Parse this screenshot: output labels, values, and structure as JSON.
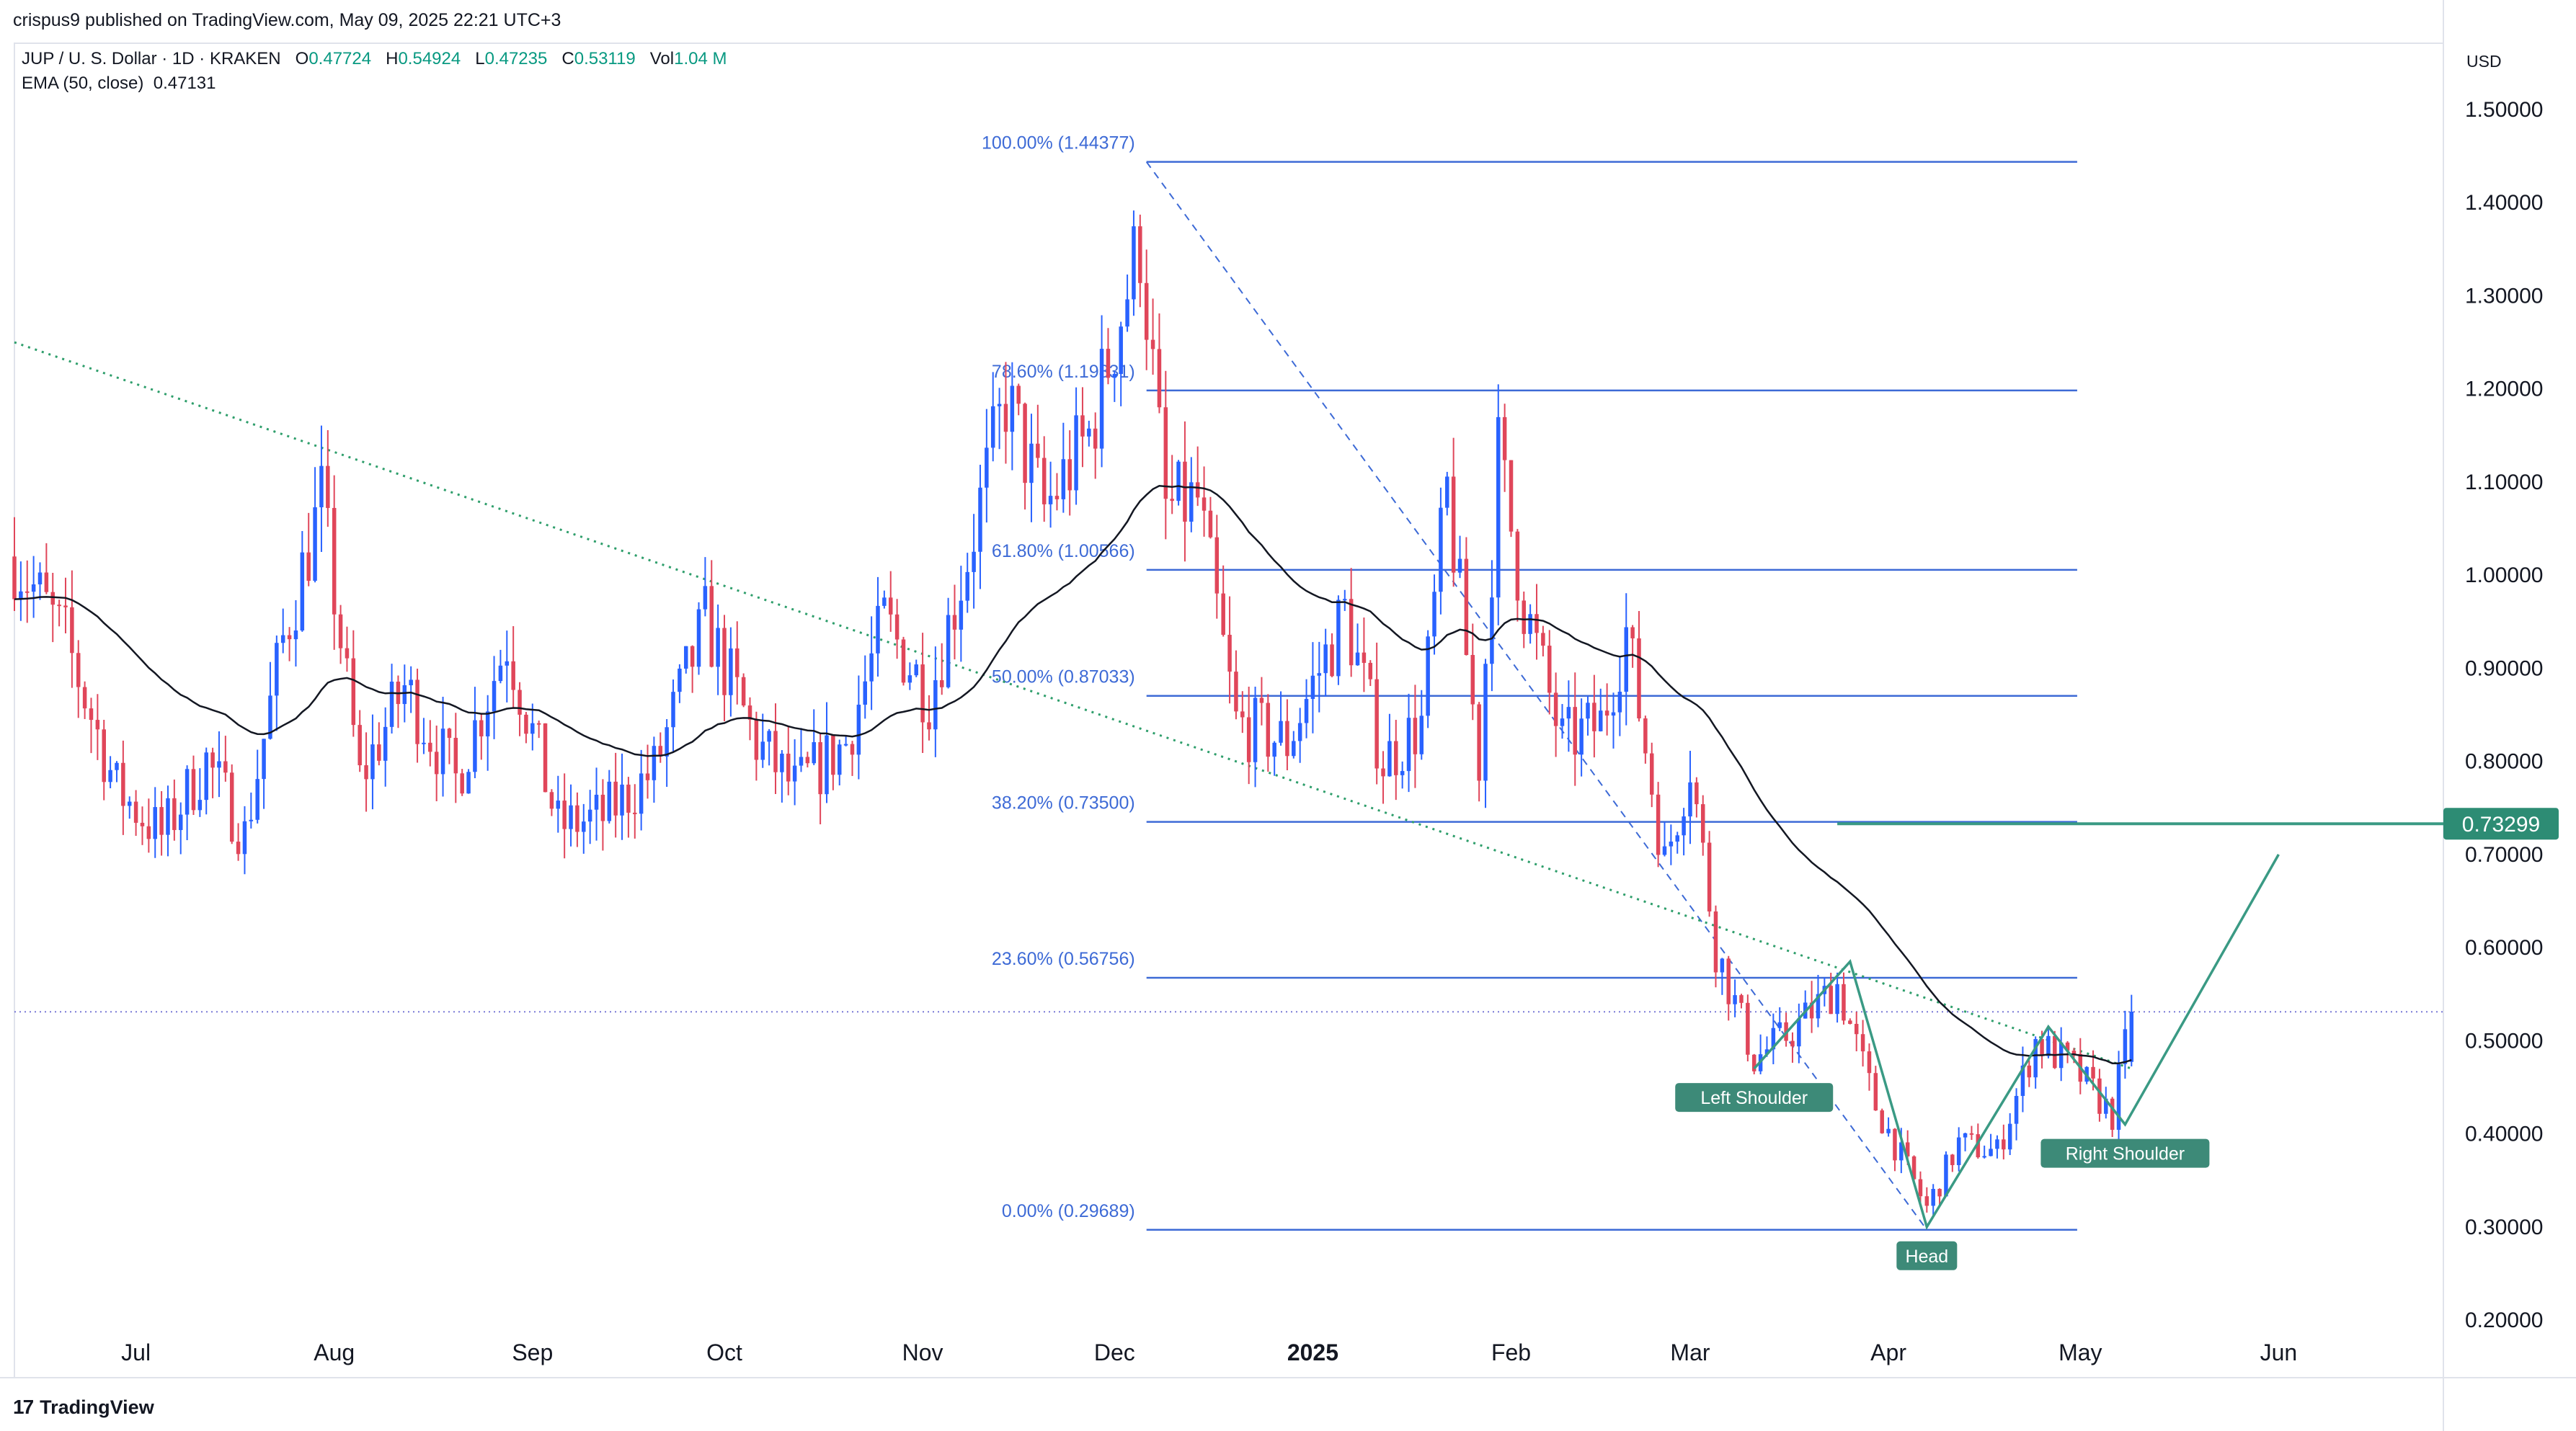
{
  "header": {
    "published": "crispus9 published on TradingView.com, May 09, 2025 22:21 UTC+3",
    "symbol": "JUP / U. S. Dollar · 1D · KRAKEN",
    "o_label": "O",
    "o_value": "0.47724",
    "h_label": "H",
    "h_value": "0.54924",
    "l_label": "L",
    "l_value": "0.47235",
    "c_label": "C",
    "c_value": "0.53119",
    "vol_label": "Vol",
    "vol_value": "1.04 M",
    "ema_label": "EMA (50, close)",
    "ema_value": "0.47131",
    "currency": "USD"
  },
  "footer": {
    "brand": "TradingView",
    "logo_icon": "tradingview-logo-icon"
  },
  "colors": {
    "up": "#2962ff",
    "down": "#e0465a",
    "ema": "#131722",
    "fib": "#3d6ad6",
    "trend": "#2e9e6b",
    "pattern": "#3a9a84",
    "price_line": "#7a7ad6",
    "label_bg": "#3d8a78"
  },
  "chart_data": {
    "type": "candlestick",
    "y_axis": {
      "min": 0.2,
      "max": 1.5,
      "side": "right",
      "ticks": [
        "1.50000",
        "1.40000",
        "1.30000",
        "1.20000",
        "1.10000",
        "1.00000",
        "0.90000",
        "0.80000",
        "0.70000",
        "0.60000",
        "0.50000",
        "0.40000",
        "0.30000",
        "0.20000"
      ]
    },
    "x_axis": {
      "ticks": [
        {
          "label": "Jul",
          "date": "2024-07-01"
        },
        {
          "label": "Aug",
          "date": "2024-08-01"
        },
        {
          "label": "Sep",
          "date": "2024-09-01"
        },
        {
          "label": "Oct",
          "date": "2024-10-01"
        },
        {
          "label": "Nov",
          "date": "2024-11-01"
        },
        {
          "label": "Dec",
          "date": "2024-12-01"
        },
        {
          "label": "2025",
          "date": "2025-01-01",
          "bold": true
        },
        {
          "label": "Feb",
          "date": "2025-02-01"
        },
        {
          "label": "Mar",
          "date": "2025-03-01"
        },
        {
          "label": "Apr",
          "date": "2025-04-01"
        },
        {
          "label": "May",
          "date": "2025-05-01"
        },
        {
          "label": "Jun",
          "date": "2025-06-01"
        }
      ]
    },
    "price_path": {
      "start": "2024-06-12",
      "end": "2025-05-09",
      "closes": [
        [
          "2024-06-12",
          1.02
        ],
        [
          "2024-06-20",
          0.93
        ],
        [
          "2024-06-28",
          0.77
        ],
        [
          "2024-07-05",
          0.72
        ],
        [
          "2024-07-12",
          0.8
        ],
        [
          "2024-07-18",
          0.72
        ],
        [
          "2024-07-24",
          0.93
        ],
        [
          "2024-07-30",
          1.08
        ],
        [
          "2024-08-05",
          0.78
        ],
        [
          "2024-08-12",
          0.88
        ],
        [
          "2024-08-20",
          0.78
        ],
        [
          "2024-08-28",
          0.93
        ],
        [
          "2024-09-05",
          0.73
        ],
        [
          "2024-09-12",
          0.74
        ],
        [
          "2024-09-20",
          0.79
        ],
        [
          "2024-09-28",
          0.95
        ],
        [
          "2024-10-06",
          0.82
        ],
        [
          "2024-10-12",
          0.77
        ],
        [
          "2024-10-20",
          0.82
        ],
        [
          "2024-10-26",
          0.95
        ],
        [
          "2024-11-02",
          0.87
        ],
        [
          "2024-11-08",
          1.02
        ],
        [
          "2024-11-14",
          1.19
        ],
        [
          "2024-11-20",
          1.07
        ],
        [
          "2024-11-27",
          1.15
        ],
        [
          "2024-12-05",
          1.36
        ],
        [
          "2024-12-09",
          1.07
        ],
        [
          "2024-12-14",
          1.08
        ],
        [
          "2024-12-20",
          0.84
        ],
        [
          "2024-12-28",
          0.82
        ],
        [
          "2025-01-06",
          0.96
        ],
        [
          "2025-01-12",
          0.8
        ],
        [
          "2025-01-18",
          0.84
        ],
        [
          "2025-01-22",
          1.09
        ],
        [
          "2025-01-27",
          0.8
        ],
        [
          "2025-01-30",
          1.13
        ],
        [
          "2025-02-03",
          0.97
        ],
        [
          "2025-02-09",
          0.82
        ],
        [
          "2025-02-15",
          0.84
        ],
        [
          "2025-02-19",
          0.94
        ],
        [
          "2025-02-25",
          0.69
        ],
        [
          "2025-03-01",
          0.8
        ],
        [
          "2025-03-05",
          0.6
        ],
        [
          "2025-03-11",
          0.48
        ],
        [
          "2025-03-17",
          0.51
        ],
        [
          "2025-03-24",
          0.56
        ],
        [
          "2025-03-30",
          0.43
        ],
        [
          "2025-04-07",
          0.32
        ],
        [
          "2025-04-12",
          0.39
        ],
        [
          "2025-04-18",
          0.38
        ],
        [
          "2025-04-24",
          0.5
        ],
        [
          "2025-04-30",
          0.47
        ],
        [
          "2025-05-06",
          0.42
        ],
        [
          "2025-05-09",
          0.531
        ]
      ]
    },
    "ema_label": "EMA (50, close)",
    "fib_levels": [
      {
        "label": "100.00% (1.44377)",
        "value": 1.44377
      },
      {
        "label": "78.60% (1.19831)",
        "value": 1.19831
      },
      {
        "label": "61.80% (1.00566)",
        "value": 1.00566
      },
      {
        "label": "50.00% (0.87033)",
        "value": 0.87033
      },
      {
        "label": "38.20% (0.73500)",
        "value": 0.735
      },
      {
        "label": "23.60% (0.56756)",
        "value": 0.56756
      },
      {
        "label": "0.00% (0.29689)",
        "value": 0.29689
      }
    ],
    "fib_range": {
      "from": "2024-12-06",
      "to": "2025-04-07"
    },
    "fib_diagonal": [
      [
        "2024-12-06",
        1.44377
      ],
      [
        "2025-04-07",
        0.29689
      ]
    ],
    "downtrend_line": [
      [
        "2024-06-12",
        1.25
      ],
      [
        "2025-05-09",
        0.47
      ]
    ],
    "target_line": {
      "value": 0.73299,
      "label": "0.73299",
      "from": "2025-03-24"
    },
    "last_price_line": 0.531,
    "pattern": {
      "points": [
        [
          "2025-03-11",
          0.47
        ],
        [
          "2025-03-26",
          0.585
        ],
        [
          "2025-04-07",
          0.3
        ],
        [
          "2025-04-26",
          0.515
        ],
        [
          "2025-05-08",
          0.41
        ],
        [
          "2025-06-01",
          0.7
        ]
      ],
      "labels": [
        {
          "text": "Left Shoulder",
          "date": "2025-03-11",
          "price": 0.47
        },
        {
          "text": "Head",
          "date": "2025-04-07",
          "price": 0.3
        },
        {
          "text": "Right Shoulder",
          "date": "2025-05-08",
          "price": 0.41
        }
      ]
    }
  }
}
